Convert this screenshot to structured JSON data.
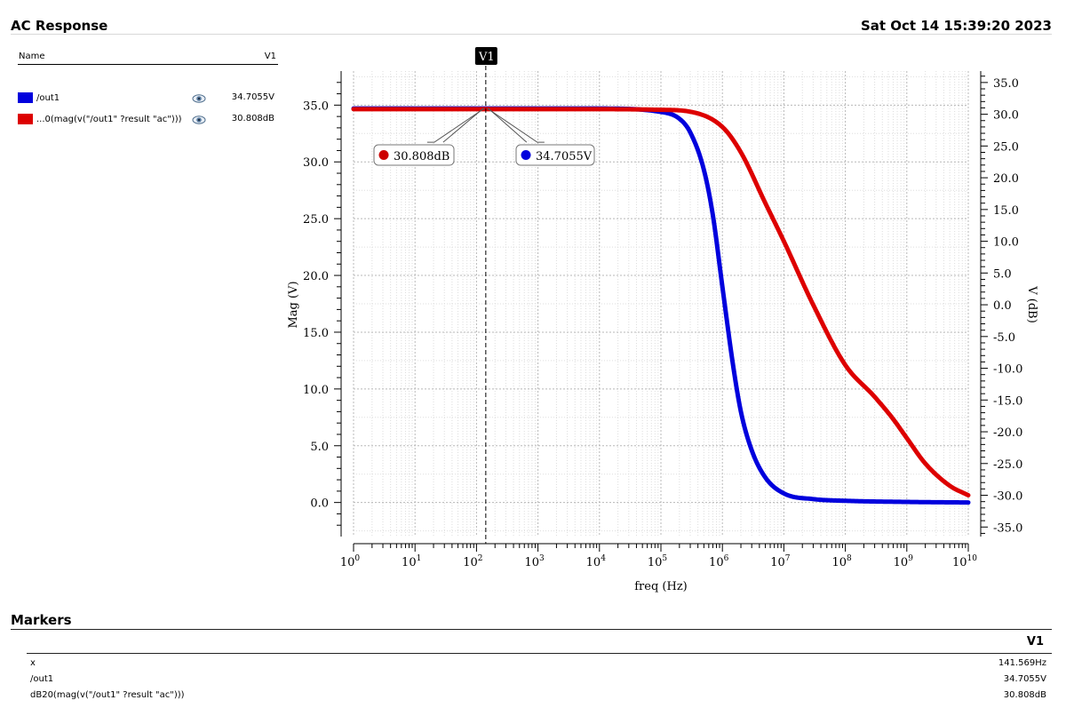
{
  "header": {
    "title": "AC Response",
    "date": "Sat Oct 14 15:39:20 2023"
  },
  "legend": {
    "name_header": "Name",
    "value_header": "V1",
    "items": [
      {
        "name": "/out1",
        "value": "34.7055V",
        "color": "#0000dd",
        "icon": "eye-icon"
      },
      {
        "name": "...0(mag(v(\"/out1\" ?result \"ac\")))",
        "value": "30.808dB",
        "color": "#dd0000",
        "icon": "eye-icon"
      }
    ]
  },
  "chart_data": {
    "type": "line",
    "xscale": "log",
    "xlabel": "freq (Hz)",
    "ylabel_left": "Mag (V)",
    "ylabel_right": "V (dB)",
    "xlim": [
      1,
      10000000000
    ],
    "ylim_left": [
      -3,
      38
    ],
    "ylim_right": [
      -36.5,
      36.8
    ],
    "x_ticks": [
      "10^0",
      "10^1",
      "10^2",
      "10^3",
      "10^4",
      "10^5",
      "10^6",
      "10^7",
      "10^8",
      "10^9",
      "10^10"
    ],
    "y_ticks_left": [
      "0.0",
      "5.0",
      "10.0",
      "15.0",
      "20.0",
      "25.0",
      "30.0",
      "35.0"
    ],
    "y_ticks_right": [
      "-35.0",
      "-30.0",
      "-25.0",
      "-20.0",
      "-15.0",
      "-10.0",
      "-5.0",
      "0.0",
      "5.0",
      "10.0",
      "15.0",
      "20.0",
      "25.0",
      "30.0",
      "35.0"
    ],
    "grid": true,
    "series": [
      {
        "name": "/out1",
        "axis": "left",
        "color": "#0000dd",
        "x": [
          1,
          10,
          100,
          1000,
          10000,
          100000,
          200000,
          300000,
          500000,
          700000,
          1000000,
          1500000,
          2000000,
          3000000,
          5000000,
          10000000,
          30000000,
          100000000,
          1000000000,
          10000000000
        ],
        "y": [
          34.7,
          34.7,
          34.7,
          34.7,
          34.7,
          34.4,
          33.8,
          32.6,
          29.3,
          25.3,
          19.0,
          12.0,
          8.0,
          4.6,
          2.2,
          0.8,
          0.3,
          0.15,
          0.05,
          0.0
        ]
      },
      {
        "name": "...0(mag(v(\"/out1\" ?result \"ac\")))",
        "axis": "right",
        "color": "#dd0000",
        "x": [
          1,
          10,
          100,
          1000,
          10000,
          100000,
          300000,
          1000000,
          2000000,
          5000000,
          10000000,
          30000000,
          100000000,
          300000000,
          600000000,
          1000000000,
          2000000000,
          5000000000,
          10000000000
        ],
        "y": [
          30.8,
          30.8,
          30.8,
          30.8,
          30.8,
          30.7,
          30.4,
          28.0,
          24.0,
          16.0,
          10.0,
          0.0,
          -9.5,
          -14.5,
          -18.0,
          -21.0,
          -25.0,
          -28.5,
          -30.0
        ]
      }
    ],
    "cursor": {
      "label": "V1",
      "x": 141.569
    },
    "annotations": [
      {
        "text": "30.808dB",
        "color": "#cc0000"
      },
      {
        "text": "34.7055V",
        "color": "#0000dd"
      }
    ]
  },
  "markers": {
    "title": "Markers",
    "column_header": "V1",
    "rows": [
      {
        "label": "x",
        "value": "141.569Hz"
      },
      {
        "label": "/out1",
        "value": "34.7055V"
      },
      {
        "label": "dB20(mag(v(\"/out1\" ?result \"ac\")))",
        "value": "30.808dB"
      }
    ]
  }
}
